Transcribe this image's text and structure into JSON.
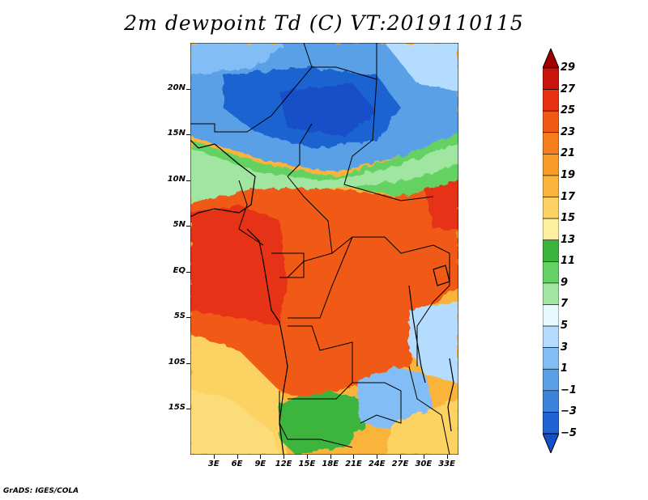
{
  "title": "2m dewpoint Td (C) VT:2019110115",
  "credit": "GrADS: IGES/COLA",
  "map": {
    "lat_labels": [
      "20N",
      "15N",
      "10N",
      "5N",
      "EQ",
      "5S",
      "10S",
      "15S"
    ],
    "lon_labels": [
      "3E",
      "6E",
      "9E",
      "12E",
      "15E",
      "18E",
      "21E",
      "24E",
      "27E",
      "30E",
      "33E"
    ],
    "lat_values": [
      20,
      15,
      10,
      5,
      0,
      -5,
      -10,
      -15
    ],
    "lon_values": [
      3,
      6,
      9,
      12,
      15,
      18,
      21,
      24,
      27,
      30,
      33
    ],
    "lon_range": [
      0,
      34.5
    ],
    "lat_range": [
      -20,
      25
    ]
  },
  "colorbar": {
    "labels": [
      "29",
      "27",
      "25",
      "23",
      "21",
      "19",
      "17",
      "15",
      "13",
      "11",
      "9",
      "7",
      "5",
      "3",
      "1",
      "−1",
      "−3",
      "−5"
    ],
    "colors": [
      "#a00000",
      "#c8140a",
      "#e63212",
      "#f05a14",
      "#f57d1e",
      "#fa9b28",
      "#fab43c",
      "#fcd264",
      "#fff0a0",
      "#3cb43c",
      "#64d264",
      "#a0e6a0",
      "#e6faff",
      "#b4dcff",
      "#82bef5",
      "#5aa0e6",
      "#3c82dc",
      "#1e64d2",
      "#1450c8"
    ]
  }
}
